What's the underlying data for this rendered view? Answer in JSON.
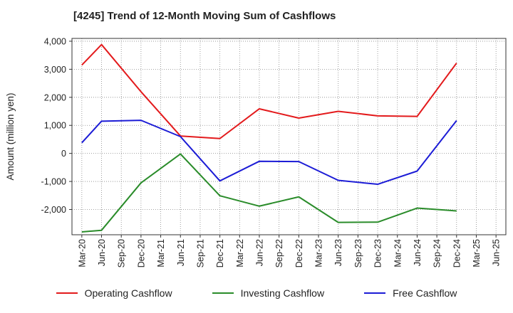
{
  "chart_data": {
    "type": "line",
    "title": "[4245]  Trend of 12-Month Moving Sum of Cashflows",
    "xlabel": "",
    "ylabel": "Amount (million yen)",
    "ylim": [
      -2900,
      4100
    ],
    "yticks": [
      -2000,
      -1000,
      0,
      1000,
      2000,
      3000,
      4000
    ],
    "ytick_labels": [
      "-2,000",
      "-1,000",
      "0",
      "1,000",
      "2,000",
      "3,000",
      "4,000"
    ],
    "grid": true,
    "legend_position": "bottom",
    "categories": [
      "Mar-20",
      "Jun-20",
      "Sep-20",
      "Dec-20",
      "Mar-21",
      "Jun-21",
      "Sep-21",
      "Dec-21",
      "Mar-22",
      "Jun-22",
      "Sep-22",
      "Dec-22",
      "Mar-23",
      "Jun-23",
      "Sep-23",
      "Dec-23",
      "Mar-24",
      "Jun-24",
      "Sep-24",
      "Dec-24",
      "Mar-25",
      "Jun-25"
    ],
    "series": [
      {
        "name": "Operating Cashflow",
        "color": "#e31a1c",
        "values": [
          3150,
          3880,
          null,
          2200,
          null,
          620,
          null,
          530,
          null,
          1590,
          null,
          1260,
          null,
          1500,
          null,
          1340,
          null,
          1320,
          null,
          3220,
          null,
          null
        ]
      },
      {
        "name": "Investing Cashflow",
        "color": "#2a8c2a",
        "values": [
          -2800,
          -2740,
          null,
          -1050,
          null,
          -20,
          null,
          -1510,
          null,
          -1880,
          null,
          -1550,
          null,
          -2460,
          null,
          -2450,
          null,
          -1950,
          null,
          -2050,
          null,
          null
        ]
      },
      {
        "name": "Free Cashflow",
        "color": "#1c1cd6",
        "values": [
          380,
          1150,
          null,
          1180,
          null,
          600,
          null,
          -980,
          null,
          -280,
          null,
          -290,
          null,
          -960,
          null,
          -1100,
          null,
          -630,
          null,
          1170,
          null,
          null
        ]
      }
    ]
  }
}
